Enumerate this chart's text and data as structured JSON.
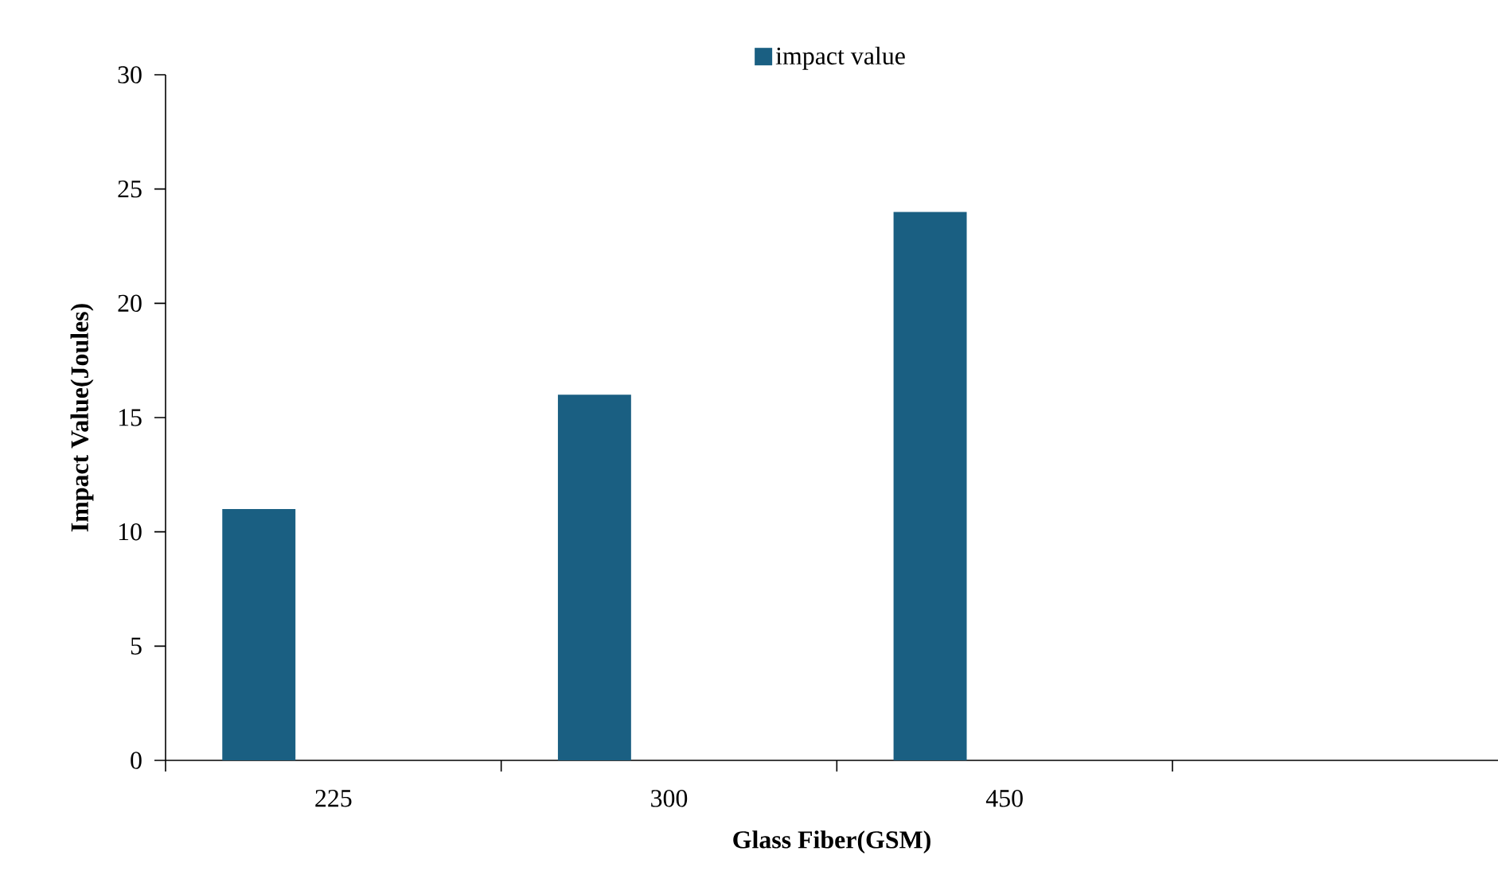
{
  "chart_data": {
    "type": "bar",
    "xlabel": "Glass Fiber(GSM)",
    "ylabel": "Impact Value(Joules)",
    "categories": [
      "225",
      "300",
      "450",
      null
    ],
    "series": [
      {
        "name": "impact value",
        "color": "#1a5f82",
        "values": [
          11,
          16,
          24,
          null
        ]
      }
    ],
    "ylim": [
      0,
      30
    ],
    "yticks": [
      0,
      5,
      10,
      15,
      20,
      25,
      30
    ],
    "grid": false,
    "legend": "top"
  }
}
